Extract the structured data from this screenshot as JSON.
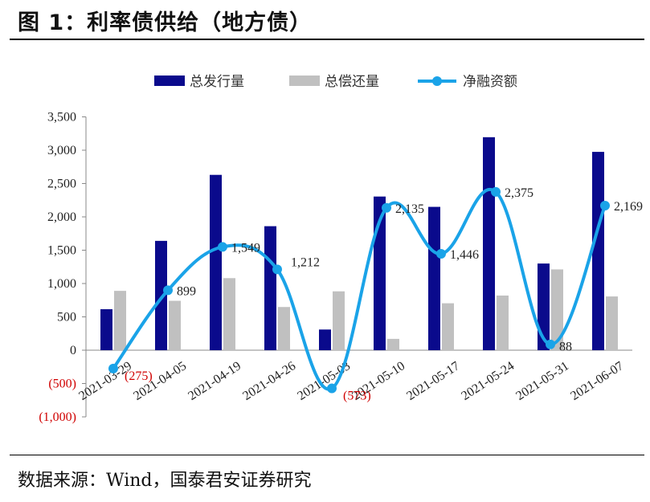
{
  "figure": {
    "title": "图 1：利率债供给（地方债）",
    "source": "数据来源：Wind，国泰君安证券研究"
  },
  "chart_data": {
    "type": "bar",
    "categories": [
      "2021-03-29",
      "2021-04-05",
      "2021-04-19",
      "2021-04-26",
      "2021-05-03",
      "2021-05-10",
      "2021-05-17",
      "2021-05-24",
      "2021-05-31",
      "2021-06-07"
    ],
    "series": [
      {
        "name": "总发行量",
        "type": "bar",
        "color": "#0a0a8c",
        "values": [
          615,
          1640,
          2630,
          1860,
          310,
          2305,
          2150,
          3195,
          1300,
          2975
        ]
      },
      {
        "name": "总偿还量",
        "type": "bar",
        "color": "#c0c0c0",
        "values": [
          890,
          741,
          1081,
          648,
          883,
          170,
          704,
          820,
          1212,
          806
        ]
      },
      {
        "name": "净融资额",
        "type": "line",
        "color": "#1aa3e8",
        "values": [
          -275,
          899,
          1549,
          1212,
          -573,
          2135,
          1446,
          2375,
          88,
          2169
        ]
      }
    ],
    "data_labels": [
      "(275)",
      "899",
      "1,549",
      "1,212",
      "(573)",
      "2,135",
      "1,446",
      "2,375",
      "88",
      "2,169"
    ],
    "ylim": [
      -1000,
      3500
    ],
    "yticks": [
      {
        "value": 3500,
        "label": "3,500"
      },
      {
        "value": 3000,
        "label": "3,000"
      },
      {
        "value": 2500,
        "label": "2,500"
      },
      {
        "value": 2000,
        "label": "2,000"
      },
      {
        "value": 1500,
        "label": "1,500"
      },
      {
        "value": 1000,
        "label": "1,000"
      },
      {
        "value": 500,
        "label": "500"
      },
      {
        "value": 0,
        "label": "0"
      },
      {
        "value": -500,
        "label": "(500)"
      },
      {
        "value": -1000,
        "label": "(1,000)"
      }
    ],
    "legend_position": "top",
    "grid": false,
    "negative_label_color": "#d00000"
  }
}
